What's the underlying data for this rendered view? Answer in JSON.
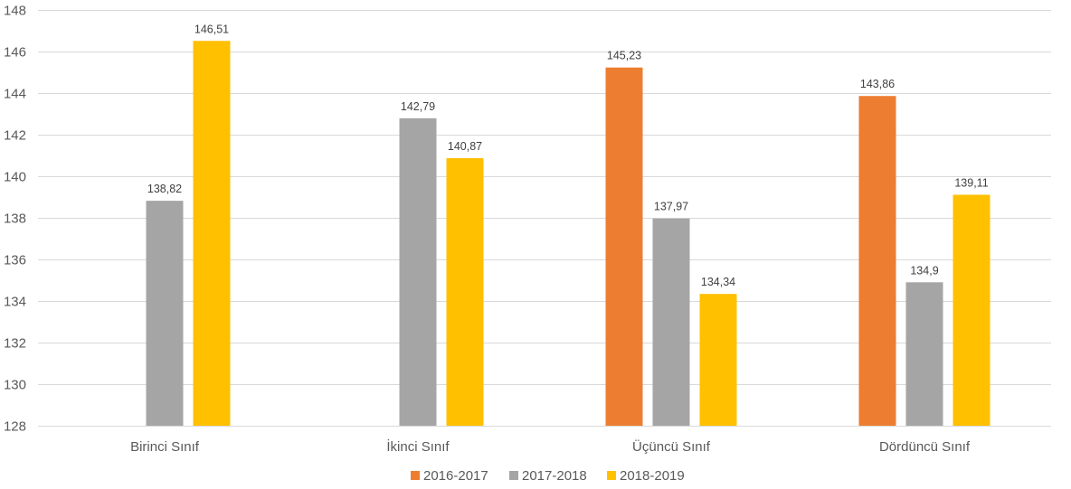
{
  "chart_data": {
    "type": "bar",
    "categories": [
      "Birinci Sınıf",
      "İkinci Sınıf",
      "Üçüncü Sınıf",
      "Dördüncü Sınıf"
    ],
    "series": [
      {
        "name": "2016-2017",
        "color": "#ED7D31",
        "values": [
          null,
          null,
          145.23,
          143.86
        ],
        "labels": [
          null,
          null,
          "145,23",
          "143,86"
        ]
      },
      {
        "name": "2017-2018",
        "color": "#A5A5A5",
        "values": [
          138.82,
          142.79,
          137.97,
          134.9
        ],
        "labels": [
          "138,82",
          "142,79",
          "137,97",
          "134,9"
        ]
      },
      {
        "name": "2018-2019",
        "color": "#FFC000",
        "values": [
          146.51,
          140.87,
          134.34,
          139.11
        ],
        "labels": [
          "146,51",
          "140,87",
          "134,34",
          "139,11"
        ]
      }
    ],
    "ylim": [
      128,
      148
    ],
    "yticks": [
      128,
      130,
      132,
      134,
      136,
      138,
      140,
      142,
      144,
      146,
      148
    ],
    "grid": true,
    "legend_position": "bottom"
  }
}
